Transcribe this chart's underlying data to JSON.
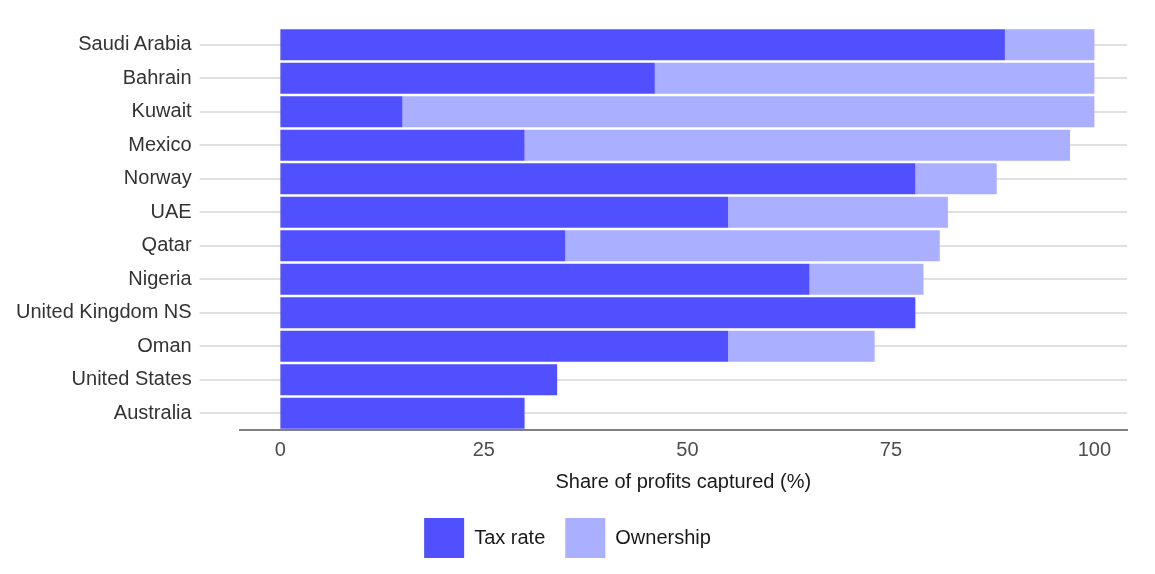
{
  "chart_data": {
    "type": "bar",
    "orientation": "horizontal",
    "stacked": true,
    "xlabel": "Share of profits captured (%)",
    "categories": [
      "Saudi Arabia",
      "Bahrain",
      "Kuwait",
      "Mexico",
      "Norway",
      "UAE",
      "Qatar",
      "Nigeria",
      "United Kingdom NS",
      "Oman",
      "United States",
      "Australia"
    ],
    "series": [
      {
        "name": "Tax rate",
        "color": "#5050ff",
        "values": [
          89,
          46,
          15,
          30,
          78,
          55,
          35,
          65,
          78,
          55,
          34,
          30
        ]
      },
      {
        "name": "Ownership",
        "color": "#aab0ff",
        "values": [
          11,
          54,
          85,
          67,
          10,
          27,
          46,
          14,
          0,
          18,
          0,
          0
        ]
      }
    ],
    "xlim": [
      -5,
      104
    ],
    "xticks": [
      0,
      25,
      50,
      75,
      100
    ],
    "grid": "y",
    "legend": "bottom"
  }
}
